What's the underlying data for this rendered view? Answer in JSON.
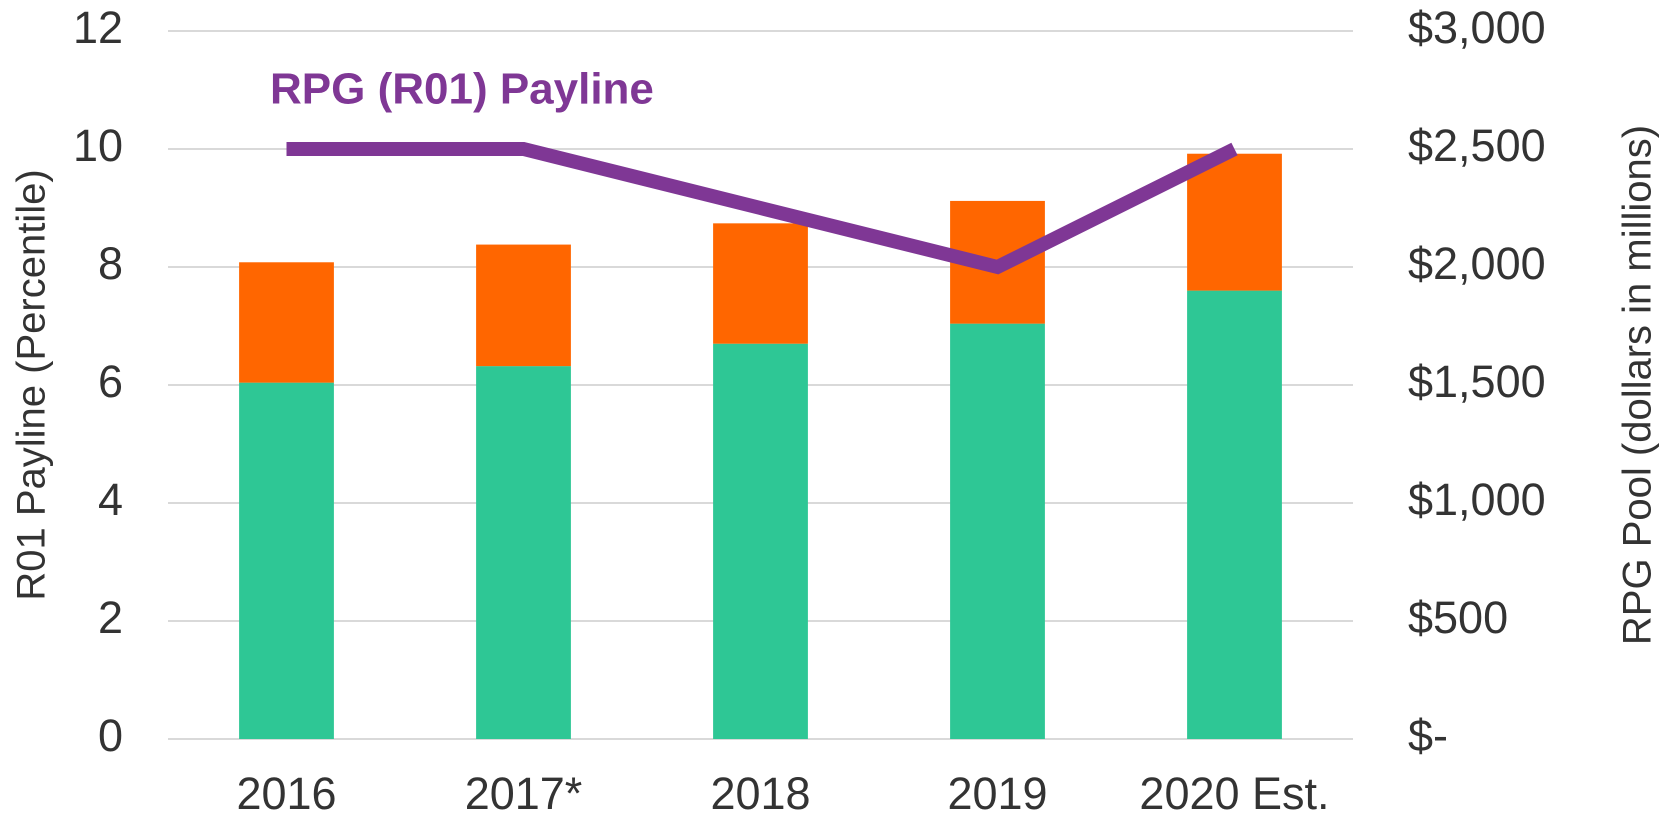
{
  "chart_data": {
    "type": "bar",
    "categories": [
      "2016",
      "2017*",
      "2018",
      "2019",
      "2020 Est."
    ],
    "series": [
      {
        "type": "bar",
        "axis": "y2",
        "color": "#2ec795",
        "values": [
          1510,
          1580,
          1675,
          1760,
          1900
        ]
      },
      {
        "type": "bar",
        "axis": "y2",
        "color": "#ff6600",
        "values": [
          510,
          515,
          510,
          520,
          580
        ]
      },
      {
        "type": "line",
        "axis": "y",
        "name": "RPG (R01) Payline",
        "color": "#7f3795",
        "values": [
          10,
          10,
          9,
          8,
          10
        ]
      }
    ],
    "stacked": true,
    "ylabel": "R01 Payline (Percentile)",
    "y2label": "RPG Pool (dollars in millions)",
    "ylim": [
      0,
      12
    ],
    "yticks": [
      0,
      2,
      4,
      6,
      8,
      10,
      12
    ],
    "y2lim": [
      0,
      3000
    ],
    "y2ticks": [
      {
        "value": 0,
        "label": "$-"
      },
      {
        "value": 500,
        "label": "$500"
      },
      {
        "value": 1000,
        "label": "$1,000"
      },
      {
        "value": 1500,
        "label": "$1,500"
      },
      {
        "value": 2000,
        "label": "$2,000"
      },
      {
        "value": 2500,
        "label": "$2,500"
      },
      {
        "value": 3000,
        "label": "$3,000"
      }
    ],
    "grid": true
  }
}
